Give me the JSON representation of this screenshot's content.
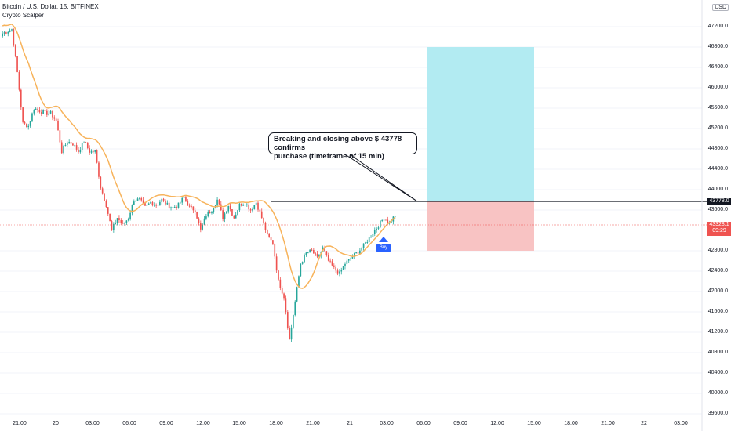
{
  "header": {
    "symbol": "Bitcoin / U.S. Dollar, 15, BITFINEX",
    "indicator": "Crypto Scalper"
  },
  "currency_button": "USD",
  "price_axis": [
    "47200.0",
    "46800.0",
    "46400.0",
    "46000.0",
    "45600.0",
    "45200.0",
    "44800.0",
    "44400.0",
    "44000.0",
    "43600.0",
    "42800.0",
    "42400.0",
    "42000.0",
    "41600.0",
    "41200.0",
    "40800.0",
    "40400.0",
    "40000.0",
    "39600.0"
  ],
  "time_axis": [
    "21:00",
    "20",
    "03:00",
    "06:00",
    "09:00",
    "12:00",
    "15:00",
    "18:00",
    "21:00",
    "21",
    "03:00",
    "06:00",
    "09:00",
    "12:00",
    "15:00",
    "18:00",
    "21:00",
    "22",
    "03:00"
  ],
  "level_tag": "43778.0",
  "current_price": {
    "price": "43328.1",
    "countdown": "09:29"
  },
  "annotation": {
    "line1": "Breaking and closing above $ 43778 confirms",
    "line2": "purchase (timeframe of 15 min)"
  },
  "buy_label": "Buy",
  "colors": {
    "up": "#26a69a",
    "down": "#ef5350",
    "ma": "#f7b35b",
    "target": "#b2ebf2",
    "stop": "#f8c3c3",
    "buy": "#2962ff"
  },
  "chart_data": {
    "type": "candlestick",
    "title": "Bitcoin / U.S. Dollar, 15, BITFINEX",
    "levels": {
      "breakout": 43778.0,
      "current": 43328.1,
      "target": 46800.0,
      "stop": 42800.0
    },
    "ylim": [
      39600,
      47400
    ],
    "close_path": [
      47050,
      47100,
      47150,
      46300,
      45300,
      45250,
      45600,
      45550,
      45500,
      45500,
      45350,
      44750,
      44950,
      44900,
      44750,
      44950,
      44750,
      44750,
      44050,
      43700,
      43200,
      43450,
      43300,
      43450,
      43800,
      43800,
      43650,
      43750,
      43700,
      43800,
      43700,
      43650,
      43700,
      43850,
      43650,
      43600,
      43200,
      43500,
      43600,
      43800,
      43450,
      43700,
      43450,
      43700,
      43750,
      43600,
      43750,
      43450,
      43100,
      42950,
      42200,
      41900,
      41050,
      41800,
      42550,
      42750,
      42800,
      42650,
      42850,
      42600,
      42450,
      42350,
      42550,
      42650,
      42750,
      42850,
      43000,
      43150,
      43300,
      43450,
      43350,
      43500
    ]
  }
}
